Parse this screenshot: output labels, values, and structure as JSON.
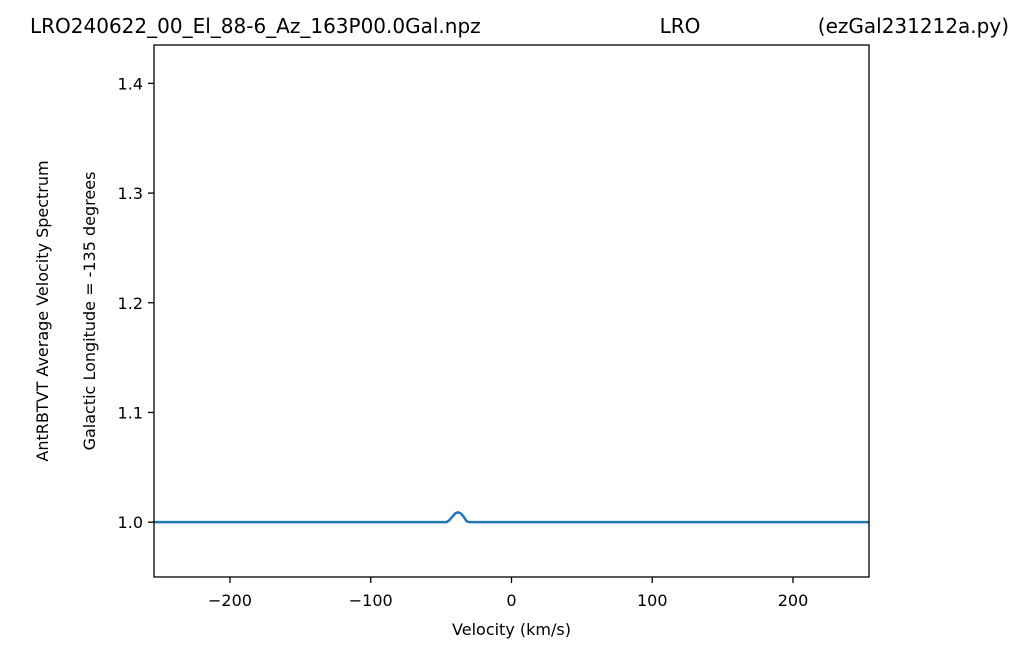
{
  "header": {
    "left": "LRO240622_00_El_88-6_Az_163P00.0Gal.npz",
    "center": "LRO",
    "right": "(ezGal231212a.py)"
  },
  "chart_data": {
    "type": "line",
    "xlabel": "Velocity (km/s)",
    "ylabel": [
      "AntRBTVT Average Velocity Spectrum",
      "Galactic Longitude = -135 degrees"
    ],
    "xlim": [
      -254,
      254
    ],
    "ylim": [
      0.95,
      1.435
    ],
    "xticks": [
      -200,
      -100,
      0,
      100,
      200
    ],
    "xtick_labels": [
      "−200",
      "−100",
      "0",
      "100",
      "200"
    ],
    "yticks": [
      1.0,
      1.1,
      1.2,
      1.3,
      1.4
    ],
    "ytick_labels": [
      "1.0",
      "1.1",
      "1.2",
      "1.3",
      "1.4"
    ],
    "grid": false,
    "series": [
      {
        "color": "#1f77b4",
        "x": [
          -254,
          -46,
          -44,
          -42,
          -40,
          -38,
          -36,
          -34,
          -32,
          -30,
          254
        ],
        "y": [
          1.0,
          1.0,
          1.002,
          1.005,
          1.008,
          1.009,
          1.008,
          1.005,
          1.001,
          1.0,
          1.0
        ]
      }
    ]
  }
}
